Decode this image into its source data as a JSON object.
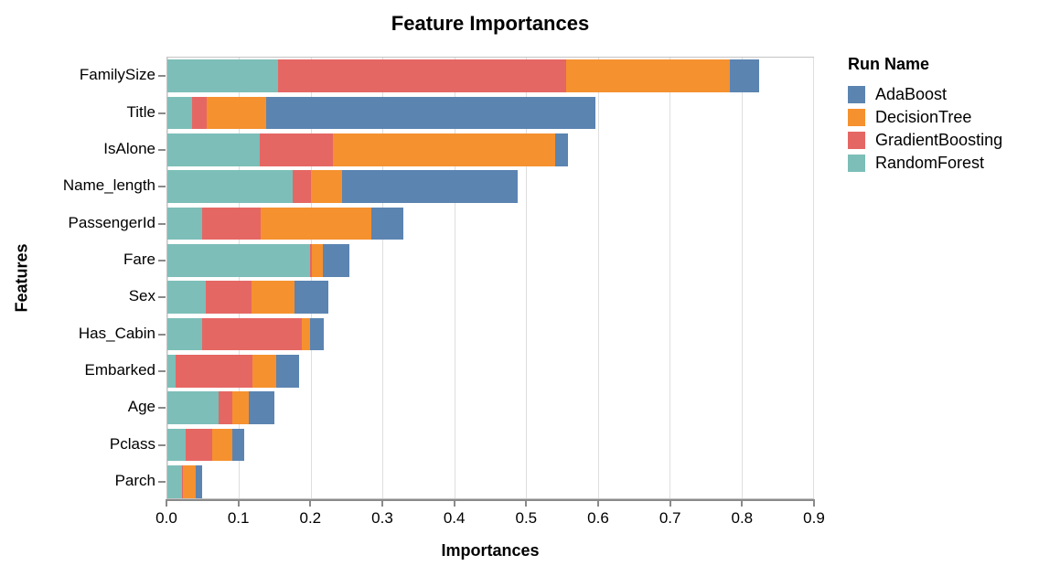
{
  "title": "Feature Importances",
  "axes": {
    "x_label": "Importances",
    "y_label": "Features",
    "x_ticks": [
      "0.0",
      "0.1",
      "0.2",
      "0.3",
      "0.4",
      "0.5",
      "0.6",
      "0.7",
      "0.8",
      "0.9"
    ]
  },
  "legend": {
    "title": "Run Name",
    "items": [
      {
        "label": "AdaBoost",
        "color": "#5b84b1"
      },
      {
        "label": "DecisionTree",
        "color": "#f5912f"
      },
      {
        "label": "GradientBoosting",
        "color": "#e56764"
      },
      {
        "label": "RandomForest",
        "color": "#7dbeb8"
      }
    ]
  },
  "chart_data": {
    "type": "bar",
    "orientation": "horizontal",
    "stacked": true,
    "title": "Feature Importances",
    "xlabel": "Importances",
    "ylabel": "Features",
    "xlim": [
      0,
      0.9
    ],
    "grid": true,
    "legend_position": "right",
    "legend_title": "Run Name",
    "categories": [
      "FamilySize",
      "Title",
      "IsAlone",
      "Name_length",
      "PassengerId",
      "Fare",
      "Sex",
      "Has_Cabin",
      "Embarked",
      "Age",
      "Pclass",
      "Parch"
    ],
    "series": [
      {
        "name": "RandomForest",
        "color": "#7dbeb8",
        "values": [
          0.154,
          0.035,
          0.129,
          0.175,
          0.049,
          0.199,
          0.053,
          0.048,
          0.011,
          0.071,
          0.026,
          0.02
        ]
      },
      {
        "name": "GradientBoosting",
        "color": "#e56764",
        "values": [
          0.402,
          0.02,
          0.102,
          0.025,
          0.081,
          0.002,
          0.064,
          0.14,
          0.107,
          0.02,
          0.036,
          0.002
        ]
      },
      {
        "name": "DecisionTree",
        "color": "#f5912f",
        "values": [
          0.228,
          0.083,
          0.31,
          0.043,
          0.154,
          0.016,
          0.06,
          0.011,
          0.034,
          0.023,
          0.029,
          0.017
        ]
      },
      {
        "name": "AdaBoost",
        "color": "#5b84b1",
        "values": [
          0.041,
          0.459,
          0.018,
          0.245,
          0.045,
          0.037,
          0.047,
          0.019,
          0.031,
          0.035,
          0.016,
          0.01
        ]
      }
    ],
    "series_totals": {
      "FamilySize": 0.825,
      "Title": 0.597,
      "IsAlone": 0.559,
      "Name_length": 0.488,
      "PassengerId": 0.329,
      "Fare": 0.254,
      "Sex": 0.224,
      "Has_Cabin": 0.218,
      "Embarked": 0.183,
      "Age": 0.149,
      "Pclass": 0.107,
      "Parch": 0.049
    }
  },
  "style_colors": {
    "gridline": "#dedede",
    "axis_line": "#8a8a8a",
    "plot_border": "#c4c4c4",
    "text": "#000000"
  }
}
